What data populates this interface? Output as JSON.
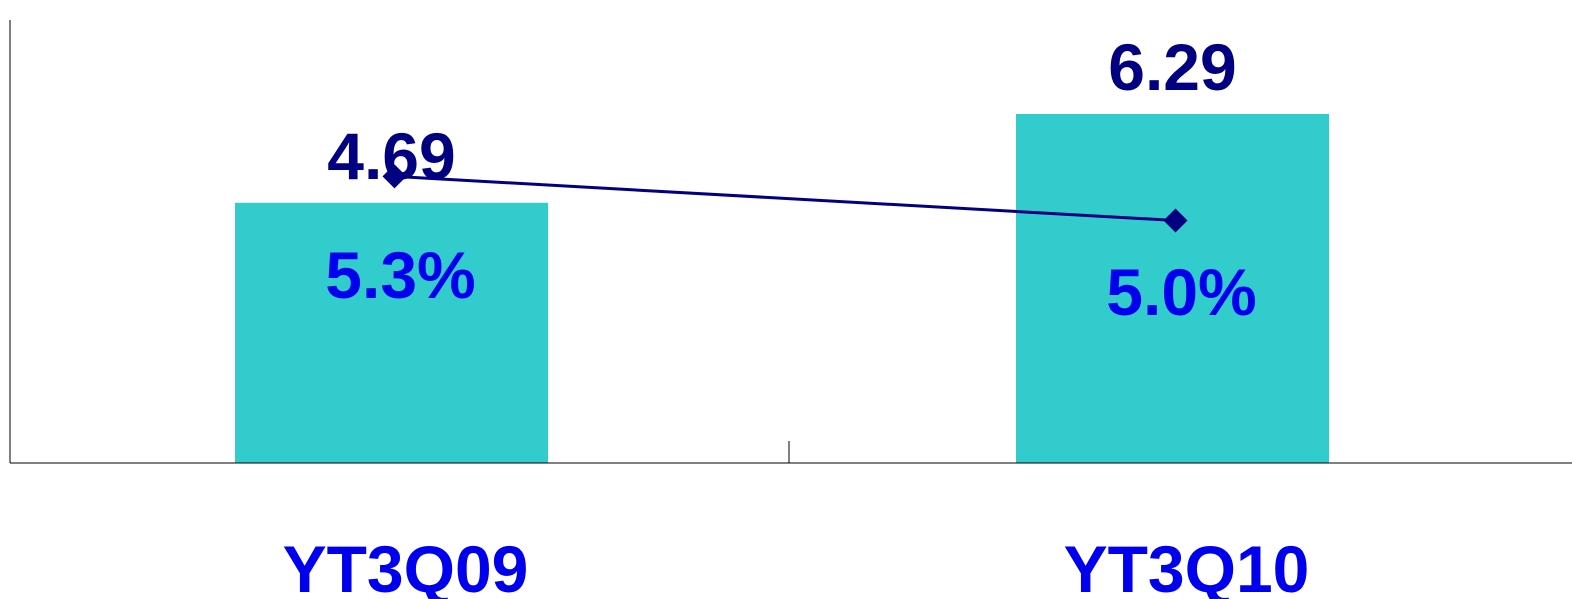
{
  "chart_data": {
    "type": "bar",
    "categories": [
      "YT3Q09",
      "YT3Q10"
    ],
    "series": [
      {
        "type": "bar",
        "values": [
          4.69,
          6.29
        ],
        "value_labels": [
          "4.69",
          "6.29"
        ]
      },
      {
        "type": "line",
        "values": [
          5.3,
          5.0
        ],
        "value_labels": [
          "5.3%",
          "5.0%"
        ]
      }
    ],
    "bar_ylim": [
      0,
      6.29
    ],
    "line_ylim": [
      3.35,
      6.5
    ],
    "grid": false,
    "legend": "none",
    "colors": {
      "bar": "#33CCCC",
      "line": "#000080",
      "bar_label": "#000080",
      "line_label": "#0000EE",
      "category_label": "#0000EE",
      "axis": "#000000"
    }
  }
}
